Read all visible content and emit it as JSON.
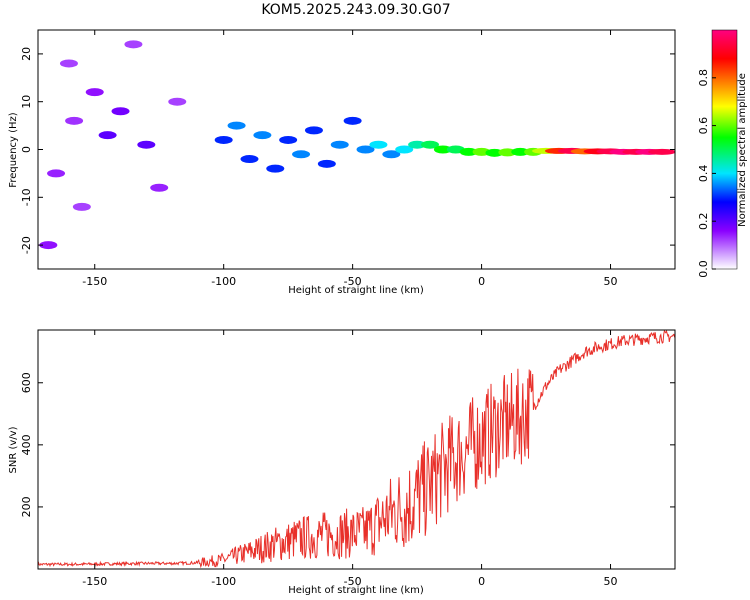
{
  "title": "KOM5.2025.243.09.30.G07",
  "chart_data": [
    {
      "type": "heatmap",
      "name": "spectrogram",
      "xlabel": "Height of straight line (km)",
      "ylabel": "Frequency (Hz)",
      "xlim": [
        -172,
        75
      ],
      "ylim": [
        -25,
        25
      ],
      "xticks": [
        -150,
        -100,
        -50,
        0,
        50
      ],
      "xtick_labels": [
        "-150",
        "-100",
        "-50",
        "0",
        "50"
      ],
      "yticks": [
        -20,
        -10,
        0,
        10,
        20
      ],
      "ytick_labels": [
        "-20",
        "-10",
        "0",
        "10",
        "20"
      ],
      "colorbar": {
        "label": "Normalized spectral amplitude",
        "range": [
          0,
          1
        ],
        "ticks": [
          0.0,
          0.2,
          0.4,
          0.6,
          0.8
        ],
        "tick_labels": [
          "0.0",
          "0.2",
          "0.4",
          "0.6",
          "0.8"
        ],
        "colors": [
          "#ffffff",
          "#d9b3ff",
          "#8a00ff",
          "#0000ff",
          "#00e5ff",
          "#00ff00",
          "#ffff00",
          "#ff8000",
          "#ff0000",
          "#ff0080"
        ]
      },
      "blobs": [
        {
          "x": -160,
          "y": 18,
          "a": 0.12
        },
        {
          "x": -150,
          "y": 12,
          "a": 0.15
        },
        {
          "x": -140,
          "y": 8,
          "a": 0.18
        },
        {
          "x": -165,
          "y": -5,
          "a": 0.14
        },
        {
          "x": -155,
          "y": -12,
          "a": 0.12
        },
        {
          "x": -145,
          "y": 3,
          "a": 0.2
        },
        {
          "x": -130,
          "y": 1,
          "a": 0.2
        },
        {
          "x": -125,
          "y": -8,
          "a": 0.14
        },
        {
          "x": -168,
          "y": -20,
          "a": 0.15
        },
        {
          "x": -118,
          "y": 10,
          "a": 0.12
        },
        {
          "x": -135,
          "y": 22,
          "a": 0.12
        },
        {
          "x": -158,
          "y": 6,
          "a": 0.13
        },
        {
          "x": -100,
          "y": 2,
          "a": 0.3
        },
        {
          "x": -95,
          "y": 5,
          "a": 0.35
        },
        {
          "x": -90,
          "y": -2,
          "a": 0.3
        },
        {
          "x": -85,
          "y": 3,
          "a": 0.35
        },
        {
          "x": -80,
          "y": -4,
          "a": 0.3
        },
        {
          "x": -75,
          "y": 2,
          "a": 0.3
        },
        {
          "x": -70,
          "y": -1,
          "a": 0.35
        },
        {
          "x": -65,
          "y": 4,
          "a": 0.3
        },
        {
          "x": -60,
          "y": -3,
          "a": 0.3
        },
        {
          "x": -55,
          "y": 1,
          "a": 0.35
        },
        {
          "x": -50,
          "y": 6,
          "a": 0.3
        },
        {
          "x": -45,
          "y": 0,
          "a": 0.35
        },
        {
          "x": -40,
          "y": 1,
          "a": 0.4
        },
        {
          "x": -35,
          "y": -1,
          "a": 0.35
        },
        {
          "x": -30,
          "y": 0,
          "a": 0.4
        },
        {
          "x": -25,
          "y": 1,
          "a": 0.45
        },
        {
          "x": -20,
          "y": 1,
          "a": 0.5
        },
        {
          "x": -15,
          "y": 0,
          "a": 0.55
        },
        {
          "x": -10,
          "y": 0,
          "a": 0.5
        },
        {
          "x": -5,
          "y": -0.5,
          "a": 0.55
        },
        {
          "x": 0,
          "y": -0.5,
          "a": 0.6
        },
        {
          "x": 5,
          "y": -0.7,
          "a": 0.55
        },
        {
          "x": 10,
          "y": -0.6,
          "a": 0.6
        },
        {
          "x": 15,
          "y": -0.5,
          "a": 0.55
        },
        {
          "x": 20,
          "y": -0.5,
          "a": 0.6
        },
        {
          "x": 25,
          "y": -0.3,
          "a": 0.65
        },
        {
          "x": 30,
          "y": -0.3,
          "a": 0.85
        },
        {
          "x": 35,
          "y": -0.3,
          "a": 0.95
        },
        {
          "x": 40,
          "y": -0.4,
          "a": 0.8
        },
        {
          "x": 45,
          "y": -0.4,
          "a": 0.9
        },
        {
          "x": 50,
          "y": -0.4,
          "a": 0.95
        },
        {
          "x": 55,
          "y": -0.5,
          "a": 1.0
        },
        {
          "x": 60,
          "y": -0.5,
          "a": 0.95
        },
        {
          "x": 65,
          "y": -0.5,
          "a": 1.0
        },
        {
          "x": 70,
          "y": -0.5,
          "a": 0.95
        }
      ]
    },
    {
      "type": "line",
      "name": "snr",
      "xlabel": "Height of straight line (km)",
      "ylabel": "SNR (v/v)",
      "xlim": [
        -172,
        75
      ],
      "ylim": [
        0,
        770
      ],
      "xticks": [
        -150,
        -100,
        -50,
        0,
        50
      ],
      "xtick_labels": [
        "-150",
        "-100",
        "-50",
        "0",
        "50"
      ],
      "yticks": [
        200,
        400,
        600
      ],
      "ytick_labels": [
        "200",
        "400",
        "600"
      ],
      "color": "#e8302a",
      "x": [
        -172,
        -160,
        -150,
        -140,
        -130,
        -120,
        -110,
        -100,
        -90,
        -80,
        -70,
        -60,
        -50,
        -45,
        -40,
        -35,
        -30,
        -25,
        -20,
        -15,
        -10,
        -5,
        0,
        5,
        10,
        15,
        20,
        25,
        30,
        35,
        40,
        45,
        50,
        55,
        60,
        65,
        70,
        75
      ],
      "y": [
        15,
        15,
        16,
        17,
        18,
        18,
        20,
        30,
        55,
        80,
        100,
        110,
        115,
        120,
        150,
        180,
        200,
        230,
        270,
        320,
        360,
        390,
        420,
        450,
        470,
        490,
        520,
        590,
        640,
        670,
        700,
        715,
        725,
        735,
        740,
        745,
        748,
        750
      ]
    }
  ]
}
